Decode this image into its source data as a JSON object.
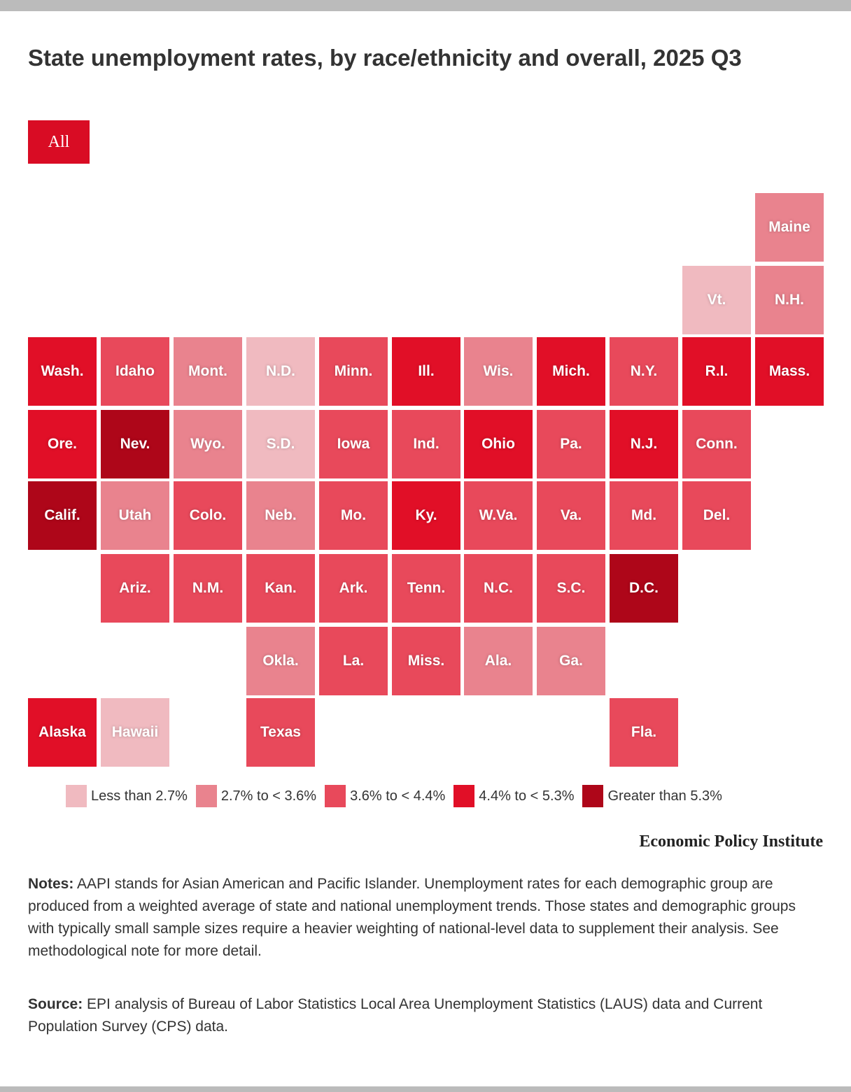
{
  "title": "State unemployment rates, by race/ethnicity and overall, 2025 Q3",
  "tabs": [
    {
      "label": "All",
      "active": true
    }
  ],
  "legend": [
    {
      "label": "Less than 2.7%",
      "color": "#f0bac0"
    },
    {
      "label": "2.7% to < 3.6%",
      "color": "#e9838e"
    },
    {
      "label": "3.6% to < 4.4%",
      "color": "#e8495b"
    },
    {
      "label": "4.4% to < 5.3%",
      "color": "#e10f27"
    },
    {
      "label": "Greater than 5.3%",
      "color": "#ae0619"
    }
  ],
  "chart_data": {
    "type": "heatmap",
    "title": "State unemployment rates, by race/ethnicity and overall, 2025 Q3",
    "subtype": "tile-grid map",
    "bins": [
      "Less than 2.7%",
      "2.7% to < 3.6%",
      "3.6% to < 4.4%",
      "4.4% to < 5.3%",
      "Greater than 5.3%"
    ],
    "states": [
      {
        "name": "Maine",
        "row": 0,
        "col": 10,
        "bin": 1
      },
      {
        "name": "Vt.",
        "row": 1,
        "col": 9,
        "bin": 0
      },
      {
        "name": "N.H.",
        "row": 1,
        "col": 10,
        "bin": 1
      },
      {
        "name": "Wash.",
        "row": 2,
        "col": 0,
        "bin": 3
      },
      {
        "name": "Idaho",
        "row": 2,
        "col": 1,
        "bin": 2
      },
      {
        "name": "Mont.",
        "row": 2,
        "col": 2,
        "bin": 1
      },
      {
        "name": "N.D.",
        "row": 2,
        "col": 3,
        "bin": 0
      },
      {
        "name": "Minn.",
        "row": 2,
        "col": 4,
        "bin": 2
      },
      {
        "name": "Ill.",
        "row": 2,
        "col": 5,
        "bin": 3
      },
      {
        "name": "Wis.",
        "row": 2,
        "col": 6,
        "bin": 1
      },
      {
        "name": "Mich.",
        "row": 2,
        "col": 7,
        "bin": 3
      },
      {
        "name": "N.Y.",
        "row": 2,
        "col": 8,
        "bin": 2
      },
      {
        "name": "R.I.",
        "row": 2,
        "col": 9,
        "bin": 3
      },
      {
        "name": "Mass.",
        "row": 2,
        "col": 10,
        "bin": 3
      },
      {
        "name": "Ore.",
        "row": 3,
        "col": 0,
        "bin": 3
      },
      {
        "name": "Nev.",
        "row": 3,
        "col": 1,
        "bin": 4
      },
      {
        "name": "Wyo.",
        "row": 3,
        "col": 2,
        "bin": 1
      },
      {
        "name": "S.D.",
        "row": 3,
        "col": 3,
        "bin": 0
      },
      {
        "name": "Iowa",
        "row": 3,
        "col": 4,
        "bin": 2
      },
      {
        "name": "Ind.",
        "row": 3,
        "col": 5,
        "bin": 2
      },
      {
        "name": "Ohio",
        "row": 3,
        "col": 6,
        "bin": 3
      },
      {
        "name": "Pa.",
        "row": 3,
        "col": 7,
        "bin": 2
      },
      {
        "name": "N.J.",
        "row": 3,
        "col": 8,
        "bin": 3
      },
      {
        "name": "Conn.",
        "row": 3,
        "col": 9,
        "bin": 2
      },
      {
        "name": "Calif.",
        "row": 4,
        "col": 0,
        "bin": 4
      },
      {
        "name": "Utah",
        "row": 4,
        "col": 1,
        "bin": 1
      },
      {
        "name": "Colo.",
        "row": 4,
        "col": 2,
        "bin": 2
      },
      {
        "name": "Neb.",
        "row": 4,
        "col": 3,
        "bin": 1
      },
      {
        "name": "Mo.",
        "row": 4,
        "col": 4,
        "bin": 2
      },
      {
        "name": "Ky.",
        "row": 4,
        "col": 5,
        "bin": 3
      },
      {
        "name": "W.Va.",
        "row": 4,
        "col": 6,
        "bin": 2
      },
      {
        "name": "Va.",
        "row": 4,
        "col": 7,
        "bin": 2
      },
      {
        "name": "Md.",
        "row": 4,
        "col": 8,
        "bin": 2
      },
      {
        "name": "Del.",
        "row": 4,
        "col": 9,
        "bin": 2
      },
      {
        "name": "Ariz.",
        "row": 5,
        "col": 1,
        "bin": 2
      },
      {
        "name": "N.M.",
        "row": 5,
        "col": 2,
        "bin": 2
      },
      {
        "name": "Kan.",
        "row": 5,
        "col": 3,
        "bin": 2
      },
      {
        "name": "Ark.",
        "row": 5,
        "col": 4,
        "bin": 2
      },
      {
        "name": "Tenn.",
        "row": 5,
        "col": 5,
        "bin": 2
      },
      {
        "name": "N.C.",
        "row": 5,
        "col": 6,
        "bin": 2
      },
      {
        "name": "S.C.",
        "row": 5,
        "col": 7,
        "bin": 2
      },
      {
        "name": "D.C.",
        "row": 5,
        "col": 8,
        "bin": 4
      },
      {
        "name": "Okla.",
        "row": 6,
        "col": 3,
        "bin": 1
      },
      {
        "name": "La.",
        "row": 6,
        "col": 4,
        "bin": 2
      },
      {
        "name": "Miss.",
        "row": 6,
        "col": 5,
        "bin": 2
      },
      {
        "name": "Ala.",
        "row": 6,
        "col": 6,
        "bin": 1
      },
      {
        "name": "Ga.",
        "row": 6,
        "col": 7,
        "bin": 1
      },
      {
        "name": "Alaska",
        "row": 7,
        "col": 0,
        "bin": 3
      },
      {
        "name": "Hawaii",
        "row": 7,
        "col": 1,
        "bin": 0
      },
      {
        "name": "Texas",
        "row": 7,
        "col": 3,
        "bin": 2
      },
      {
        "name": "Fla.",
        "row": 7,
        "col": 8,
        "bin": 2
      }
    ]
  },
  "brand": "Economic Policy Institute",
  "notes": {
    "label": "Notes:",
    "text": " AAPI stands for Asian American and Pacific Islander. Unemployment rates for each demographic group are produced from a weighted average of state and national unemployment trends. Those states and demographic groups with typically small sample sizes require a heavier weighting of national-level data to supplement their analysis. See methodological note for more detail."
  },
  "source": {
    "label": "Source:",
    "text": " EPI analysis of Bureau of Labor Statistics Local Area Unemployment Statistics (LAUS) data and Current Population Survey (CPS) data."
  }
}
